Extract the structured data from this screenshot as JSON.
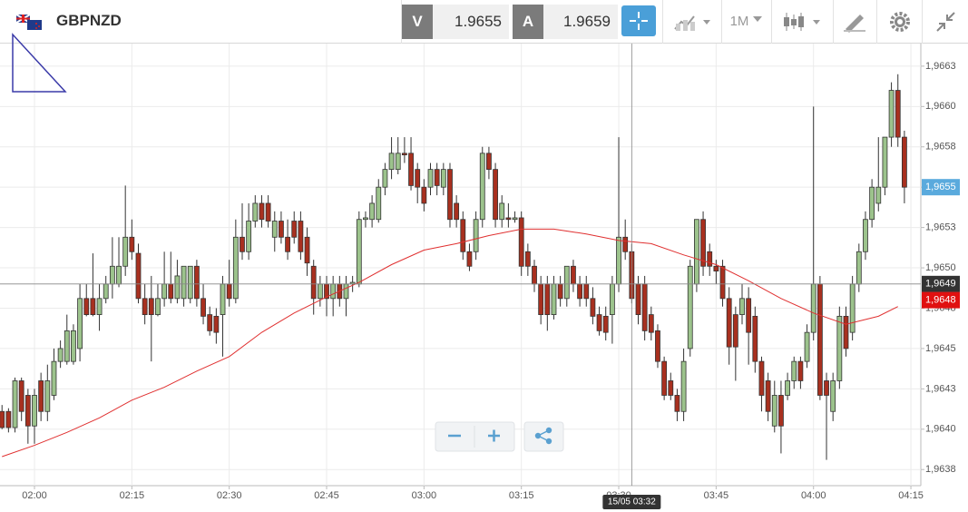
{
  "header": {
    "symbol": "GBPNZD",
    "bid": {
      "label": "V",
      "price": "1.9655"
    },
    "ask": {
      "label": "A",
      "price": "1.9659"
    },
    "timeframe": "1M"
  },
  "chart_data": {
    "type": "candlestick",
    "up_color": "#9cc38c",
    "down_color": "#a8301f",
    "grid": true,
    "xlim": [
      114.69,
      256.53
    ],
    "ylim": [
      1.96365,
      1.96639
    ],
    "xticks": [
      {
        "value": 120,
        "label": "02:00"
      },
      {
        "value": 135,
        "label": "02:15"
      },
      {
        "value": 150,
        "label": "02:30"
      },
      {
        "value": 165,
        "label": "02:45"
      },
      {
        "value": 180,
        "label": "03:00"
      },
      {
        "value": 195,
        "label": "03:15"
      },
      {
        "value": 210,
        "label": "03:30"
      },
      {
        "value": 225,
        "label": "03:45"
      },
      {
        "value": 240,
        "label": "04:00"
      },
      {
        "value": 255,
        "label": "04:15"
      }
    ],
    "yticks": [
      {
        "value": 1.96625,
        "label": "1,9663"
      },
      {
        "value": 1.966,
        "label": "1,9660"
      },
      {
        "value": 1.96575,
        "label": "1,9658"
      },
      {
        "value": 1.9655,
        "label": "1,9655"
      },
      {
        "value": 1.96525,
        "label": "1,9653"
      },
      {
        "value": 1.965,
        "label": "1,9650"
      },
      {
        "value": 1.96475,
        "label": "1,9648"
      },
      {
        "value": 1.9645,
        "label": "1,9645"
      },
      {
        "value": 1.96425,
        "label": "1,9643"
      },
      {
        "value": 1.964,
        "label": "1,9640"
      },
      {
        "value": 1.96375,
        "label": "1,9638"
      }
    ],
    "candles": {
      "x": [
        115,
        116,
        117,
        118,
        119,
        120,
        121,
        122,
        123,
        124,
        125,
        126,
        127,
        128,
        129,
        130,
        131,
        132,
        133,
        134,
        135,
        136,
        137,
        138,
        139,
        140,
        141,
        142,
        143,
        144,
        145,
        146,
        147,
        148,
        149,
        150,
        151,
        152,
        153,
        154,
        155,
        156,
        157,
        158,
        159,
        160,
        161,
        162,
        163,
        164,
        165,
        166,
        167,
        168,
        169,
        170,
        171,
        172,
        173,
        174,
        175,
        176,
        177,
        178,
        179,
        180,
        181,
        182,
        183,
        184,
        185,
        186,
        187,
        188,
        189,
        190,
        191,
        192,
        193,
        194,
        195,
        196,
        197,
        198,
        199,
        200,
        201,
        202,
        203,
        204,
        205,
        206,
        207,
        208,
        209,
        210,
        211,
        212,
        213,
        214,
        215,
        216,
        217,
        218,
        219,
        220,
        221,
        222,
        223,
        224,
        225,
        226,
        227,
        228,
        229,
        230,
        231,
        232,
        233,
        234,
        235,
        236,
        237,
        238,
        239,
        240,
        241,
        242,
        243,
        244,
        245,
        246,
        247,
        248,
        249,
        250,
        251,
        252,
        253,
        254
      ],
      "open": [
        1.96411,
        1.96411,
        1.96401,
        1.9643,
        1.96421,
        1.96402,
        1.9643,
        1.96411,
        1.96421,
        1.96442,
        1.96442,
        1.96442,
        1.9645,
        1.96481,
        1.96481,
        1.96471,
        1.96481,
        1.9649,
        1.9649,
        1.96501,
        1.96519,
        1.96509,
        1.96481,
        1.96481,
        1.96471,
        1.96481,
        1.9649,
        1.96481,
        1.96481,
        1.96481,
        1.96501,
        1.96481,
        1.96471,
        1.9647,
        1.96471,
        1.9649,
        1.96481,
        1.96519,
        1.9651,
        1.96529,
        1.9654,
        1.9654,
        1.96519,
        1.96529,
        1.96519,
        1.96529,
        1.96529,
        1.96519,
        1.96501,
        1.96481,
        1.9649,
        1.96481,
        1.9649,
        1.96481,
        1.9649,
        1.9649,
        1.9653,
        1.9653,
        1.9653,
        1.9655,
        1.96561,
        1.96561,
        1.96571,
        1.96571,
        1.96561,
        1.9655,
        1.9655,
        1.96561,
        1.9655,
        1.96561,
        1.9654,
        1.9653,
        1.9651,
        1.9651,
        1.9653,
        1.96571,
        1.96561,
        1.9653,
        1.96531,
        1.9653,
        1.96531,
        1.9651,
        1.96501,
        1.9649,
        1.9649,
        1.96471,
        1.9649,
        1.96481,
        1.96501,
        1.9649,
        1.9649,
        1.96481,
        1.96471,
        1.9647,
        1.96471,
        1.9649,
        1.96519,
        1.9651,
        1.9649,
        1.9649,
        1.96471,
        1.96461,
        1.96442,
        1.9643,
        1.96421,
        1.96411,
        1.9645,
        1.9649,
        1.9653,
        1.9651,
        1.96501,
        1.96501,
        1.96481,
        1.96471,
        1.96471,
        1.96481,
        1.9647,
        1.96442,
        1.9643,
        1.96402,
        1.96421,
        1.96421,
        1.9643,
        1.96442,
        1.96442,
        1.9646,
        1.9649,
        1.9643,
        1.96411,
        1.9643,
        1.9647,
        1.9646,
        1.9649,
        1.9651,
        1.9653,
        1.9654,
        1.9655,
        1.96581,
        1.9661,
        1.96581
      ],
      "high": [
        1.96415,
        1.96413,
        1.96432,
        1.96432,
        1.96425,
        1.96425,
        1.96435,
        1.9644,
        1.9645,
        1.96455,
        1.96471,
        1.96465,
        1.9649,
        1.9649,
        1.96509,
        1.9649,
        1.96495,
        1.96519,
        1.96519,
        1.96551,
        1.9653,
        1.96515,
        1.9649,
        1.96495,
        1.9649,
        1.9651,
        1.9651,
        1.96505,
        1.96501,
        1.96501,
        1.96505,
        1.9649,
        1.96476,
        1.96475,
        1.96495,
        1.96505,
        1.9653,
        1.9654,
        1.9654,
        1.96545,
        1.96545,
        1.96545,
        1.96535,
        1.96535,
        1.9653,
        1.96535,
        1.96535,
        1.96525,
        1.96505,
        1.96495,
        1.96495,
        1.96495,
        1.96495,
        1.96495,
        1.96495,
        1.96535,
        1.96535,
        1.96545,
        1.96555,
        1.96565,
        1.96581,
        1.96581,
        1.96581,
        1.96581,
        1.96565,
        1.96555,
        1.96565,
        1.96565,
        1.96565,
        1.96565,
        1.96545,
        1.96535,
        1.96515,
        1.96535,
        1.96575,
        1.96575,
        1.96565,
        1.96545,
        1.9654,
        1.96535,
        1.96535,
        1.96515,
        1.96505,
        1.96495,
        1.96495,
        1.96495,
        1.96495,
        1.96501,
        1.96505,
        1.96495,
        1.96495,
        1.96488,
        1.96476,
        1.96476,
        1.96495,
        1.96581,
        1.9653,
        1.96515,
        1.96495,
        1.96495,
        1.96476,
        1.96465,
        1.96445,
        1.96435,
        1.96425,
        1.9645,
        1.96505,
        1.9653,
        1.96535,
        1.96515,
        1.96505,
        1.96505,
        1.96488,
        1.96476,
        1.9649,
        1.96488,
        1.96476,
        1.96445,
        1.96435,
        1.9643,
        1.9643,
        1.96435,
        1.96445,
        1.96445,
        1.96465,
        1.966,
        1.96495,
        1.96435,
        1.96435,
        1.96476,
        1.96476,
        1.96495,
        1.96515,
        1.96535,
        1.96555,
        1.96581,
        1.96581,
        1.96615,
        1.9662,
        1.96585
      ],
      "low": [
        1.964,
        1.96398,
        1.96398,
        1.96405,
        1.96391,
        1.96391,
        1.96405,
        1.96405,
        1.96418,
        1.96438,
        1.9644,
        1.9644,
        1.96442,
        1.9647,
        1.9647,
        1.96461,
        1.96478,
        1.96481,
        1.96488,
        1.96495,
        1.96505,
        1.96478,
        1.96465,
        1.96442,
        1.9647,
        1.96476,
        1.96478,
        1.96478,
        1.96476,
        1.96478,
        1.96476,
        1.96465,
        1.96458,
        1.96453,
        1.96445,
        1.96476,
        1.96478,
        1.96505,
        1.96505,
        1.96525,
        1.96525,
        1.96525,
        1.9651,
        1.96515,
        1.96505,
        1.96515,
        1.96505,
        1.96495,
        1.96471,
        1.96476,
        1.9647,
        1.9647,
        1.96476,
        1.9647,
        1.96485,
        1.96488,
        1.96525,
        1.96525,
        1.96528,
        1.96545,
        1.96555,
        1.96558,
        1.96565,
        1.96548,
        1.9654,
        1.96535,
        1.96545,
        1.96545,
        1.96545,
        1.96525,
        1.96525,
        1.96505,
        1.96498,
        1.96505,
        1.96525,
        1.96555,
        1.96525,
        1.96525,
        1.96525,
        1.96528,
        1.96495,
        1.96495,
        1.96485,
        1.96465,
        1.96461,
        1.96468,
        1.96476,
        1.96476,
        1.96485,
        1.96476,
        1.96476,
        1.96465,
        1.96458,
        1.96455,
        1.96453,
        1.96485,
        1.96505,
        1.96478,
        1.96465,
        1.96455,
        1.96455,
        1.96438,
        1.96418,
        1.96418,
        1.96405,
        1.96405,
        1.96445,
        1.96485,
        1.96495,
        1.96495,
        1.9649,
        1.96476,
        1.9644,
        1.9643,
        1.96465,
        1.9644,
        1.96435,
        1.96411,
        1.96405,
        1.96398,
        1.96385,
        1.96418,
        1.96425,
        1.96425,
        1.96438,
        1.96455,
        1.96418,
        1.96381,
        1.96405,
        1.96425,
        1.96445,
        1.96455,
        1.96485,
        1.96505,
        1.96525,
        1.96535,
        1.96545,
        1.96575,
        1.96575,
        1.9654
      ],
      "close": [
        1.96401,
        1.96401,
        1.9643,
        1.96411,
        1.96402,
        1.96421,
        1.96411,
        1.9643,
        1.96442,
        1.9645,
        1.96461,
        1.96461,
        1.96481,
        1.96471,
        1.96471,
        1.96481,
        1.9649,
        1.96501,
        1.96501,
        1.96519,
        1.9651,
        1.96481,
        1.96471,
        1.96471,
        1.96481,
        1.9649,
        1.96481,
        1.96495,
        1.96501,
        1.96501,
        1.96481,
        1.9647,
        1.96461,
        1.9646,
        1.9649,
        1.96481,
        1.96519,
        1.9651,
        1.96529,
        1.9654,
        1.9653,
        1.96529,
        1.96529,
        1.96519,
        1.9651,
        1.96519,
        1.9651,
        1.96503,
        1.96481,
        1.9649,
        1.96481,
        1.9649,
        1.96481,
        1.9649,
        1.96491,
        1.9653,
        1.96531,
        1.9654,
        1.9655,
        1.96561,
        1.96571,
        1.96571,
        1.9657,
        1.96551,
        1.9655,
        1.9654,
        1.96561,
        1.96551,
        1.96561,
        1.9653,
        1.9653,
        1.9651,
        1.96501,
        1.9653,
        1.96571,
        1.96561,
        1.9653,
        1.9654,
        1.9653,
        1.96531,
        1.96501,
        1.96501,
        1.9649,
        1.96471,
        1.96471,
        1.9649,
        1.96481,
        1.96501,
        1.9649,
        1.96481,
        1.96481,
        1.9647,
        1.96461,
        1.9646,
        1.9649,
        1.96519,
        1.9651,
        1.96481,
        1.96471,
        1.96461,
        1.9646,
        1.96442,
        1.96421,
        1.96421,
        1.96411,
        1.96442,
        1.96501,
        1.9653,
        1.96501,
        1.96501,
        1.96498,
        1.96481,
        1.96451,
        1.96451,
        1.96481,
        1.9646,
        1.96442,
        1.96421,
        1.96411,
        1.96421,
        1.96402,
        1.9643,
        1.96442,
        1.9643,
        1.9646,
        1.9649,
        1.96421,
        1.96421,
        1.9643,
        1.9647,
        1.9645,
        1.9649,
        1.9651,
        1.9653,
        1.9655,
        1.9655,
        1.96581,
        1.9661,
        1.96581,
        1.9655
      ]
    },
    "moving_average": {
      "color": "#e03030",
      "x": [
        115,
        120,
        125,
        130,
        135,
        140,
        145,
        150,
        155,
        160,
        165,
        170,
        175,
        180,
        185,
        190,
        195,
        200,
        205,
        210,
        215,
        220,
        225,
        230,
        235,
        240,
        245,
        250,
        253
      ],
      "values": [
        1.96383,
        1.9639,
        1.96398,
        1.96407,
        1.96418,
        1.96426,
        1.96436,
        1.96445,
        1.9646,
        1.96472,
        1.96482,
        1.96491,
        1.96502,
        1.96511,
        1.96515,
        1.9652,
        1.96524,
        1.96524,
        1.96521,
        1.96517,
        1.96515,
        1.96508,
        1.96502,
        1.96492,
        1.96481,
        1.96472,
        1.96465,
        1.9647,
        1.96476
      ]
    },
    "price_markers": [
      {
        "value": 1.9655,
        "label": "1,9655",
        "color": "#5aaadd"
      },
      {
        "value": 1.9648,
        "label": "1,9648",
        "color": "#e01010"
      }
    ],
    "crosshair": {
      "x": 212,
      "y": 1.9649,
      "x_label": "15/05 03:32",
      "y_label": "1,9649",
      "color": "#333333"
    }
  }
}
